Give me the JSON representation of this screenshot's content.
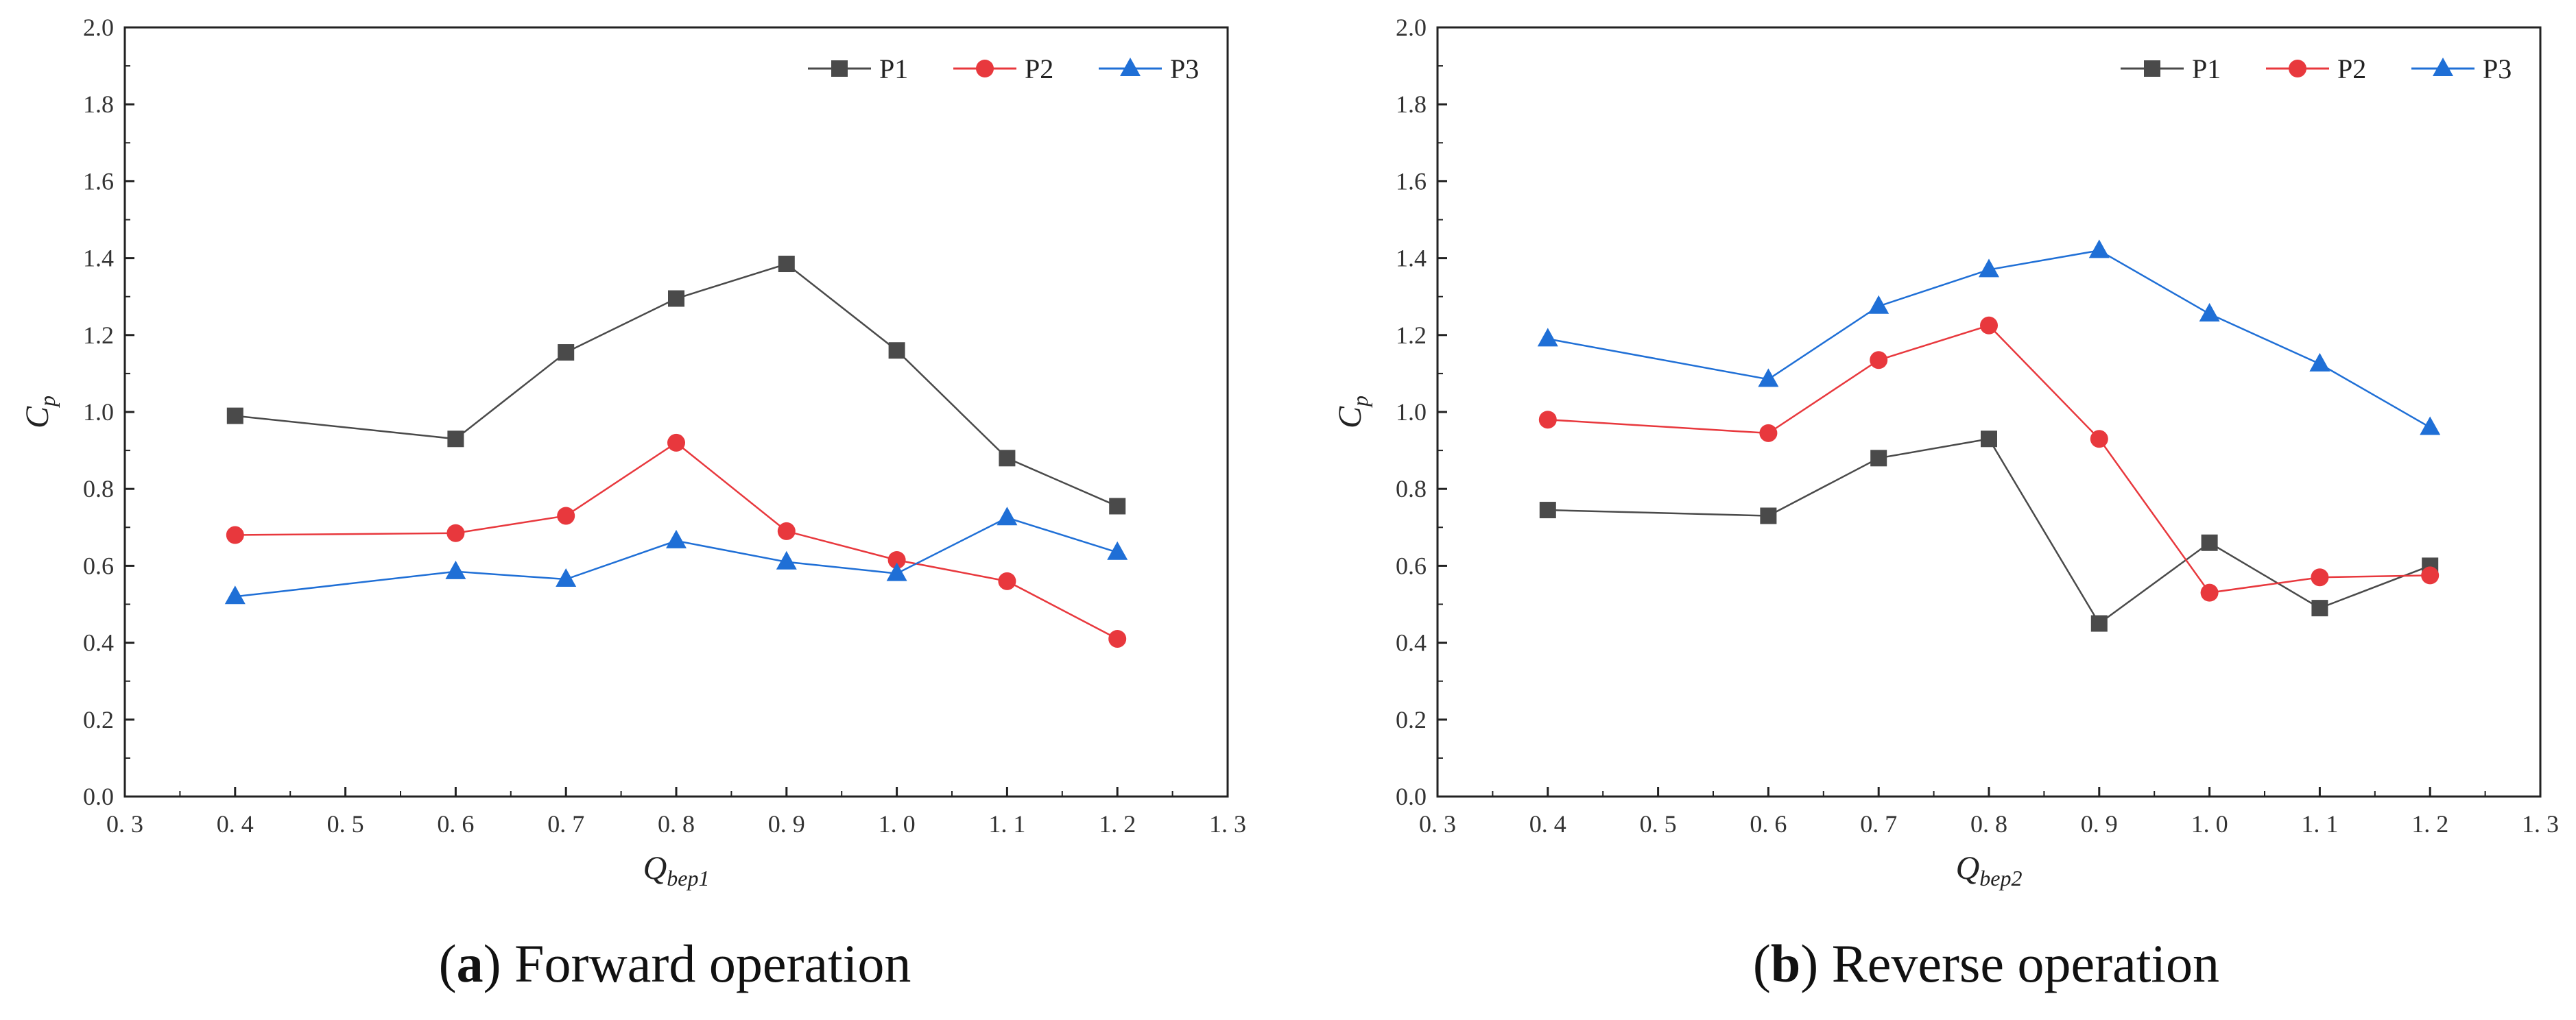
{
  "colors": {
    "P1": "#4a4a4a",
    "P2": "#e8383d",
    "P3": "#1f6fd6"
  },
  "chart_data": [
    {
      "type": "line",
      "panel": "a",
      "caption_letter": "a",
      "caption_text": "Forward operation",
      "xlabel_main": "Q",
      "xlabel_sub": "bep1",
      "ylabel_main": "C",
      "ylabel_sub": "p",
      "xlim": [
        0.3,
        1.3
      ],
      "ylim": [
        0.0,
        2.0
      ],
      "xticks": [
        "0.3",
        "0.4",
        "0.5",
        "0.6",
        "0.7",
        "0.8",
        "0.9",
        "1.0",
        "1.1",
        "1.2",
        "1.3"
      ],
      "yticks": [
        "0.0",
        "0.2",
        "0.4",
        "0.6",
        "0.8",
        "1.0",
        "1.2",
        "1.4",
        "1.6",
        "1.8",
        "2.0"
      ],
      "legend_position": "top-right",
      "x": [
        0.4,
        0.6,
        0.7,
        0.8,
        0.9,
        1.0,
        1.1,
        1.2
      ],
      "series": [
        {
          "name": "P1",
          "marker": "square",
          "values": [
            0.99,
            0.93,
            1.155,
            1.295,
            1.385,
            1.16,
            0.88,
            0.755
          ]
        },
        {
          "name": "P2",
          "marker": "circle",
          "values": [
            0.68,
            0.685,
            0.73,
            0.92,
            0.69,
            0.615,
            0.56,
            0.41
          ]
        },
        {
          "name": "P3",
          "marker": "triangle",
          "values": [
            0.52,
            0.585,
            0.565,
            0.665,
            0.61,
            0.58,
            0.725,
            0.635
          ]
        }
      ]
    },
    {
      "type": "line",
      "panel": "b",
      "caption_letter": "b",
      "caption_text": "Reverse operation",
      "xlabel_main": "Q",
      "xlabel_sub": "bep2",
      "ylabel_main": "C",
      "ylabel_sub": "p",
      "xlim": [
        0.3,
        1.3
      ],
      "ylim": [
        0.0,
        2.0
      ],
      "xticks": [
        "0.3",
        "0.4",
        "0.5",
        "0.6",
        "0.7",
        "0.8",
        "0.9",
        "1.0",
        "1.1",
        "1.2",
        "1.3"
      ],
      "yticks": [
        "0.0",
        "0.2",
        "0.4",
        "0.6",
        "0.8",
        "1.0",
        "1.2",
        "1.4",
        "1.6",
        "1.8",
        "2.0"
      ],
      "legend_position": "top-right",
      "x": [
        0.4,
        0.6,
        0.7,
        0.8,
        0.9,
        1.0,
        1.1,
        1.2
      ],
      "series": [
        {
          "name": "P1",
          "marker": "square",
          "values": [
            0.745,
            0.73,
            0.88,
            0.93,
            0.45,
            0.66,
            0.49,
            0.6
          ]
        },
        {
          "name": "P2",
          "marker": "circle",
          "values": [
            0.98,
            0.945,
            1.135,
            1.225,
            0.93,
            0.53,
            0.57,
            0.575
          ]
        },
        {
          "name": "P3",
          "marker": "triangle",
          "values": [
            1.19,
            1.085,
            1.275,
            1.37,
            1.42,
            1.255,
            1.125,
            0.96
          ]
        }
      ]
    }
  ]
}
